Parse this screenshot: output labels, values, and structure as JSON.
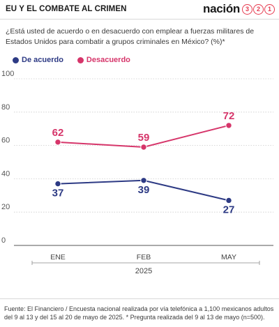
{
  "header": {
    "title": "EU Y EL COMBATE AL CRIMEN",
    "brand_word": "nación",
    "brand_digits": [
      "3",
      "2",
      "1"
    ]
  },
  "question": "¿Está usted de acuerdo o en desacuerdo con emplear a fuerzas militares de Estados Unidos para combatir a grupos criminales en México? (%)*",
  "colors": {
    "acuerdo": "#2d3a84",
    "desacuerdo": "#d6356a",
    "brand": "#e63a4f"
  },
  "chart_data": {
    "type": "line",
    "categories": [
      "ENE",
      "FEB",
      "MAY"
    ],
    "x_group_label": "2025",
    "series": [
      {
        "name": "De acuerdo",
        "values": [
          37,
          39,
          27
        ]
      },
      {
        "name": "Desacuerdo",
        "values": [
          62,
          59,
          72
        ]
      }
    ],
    "ylim": [
      0,
      100
    ],
    "yticks": [
      0,
      20,
      40,
      60,
      80,
      100
    ],
    "grid": true,
    "legend": "top-left"
  },
  "footer": "Fuente: El Financiero / Encuesta nacional realizada por vía telefónica a 1,100 mexicanos adultos del 9 al 13 y del 15 al 20 de mayo de 2025. * Pregunta realizada del 9 al 13 de mayo (n=500)."
}
